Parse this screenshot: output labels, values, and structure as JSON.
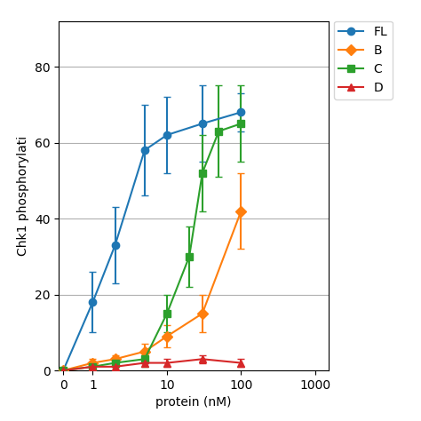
{
  "chart_data": {
    "type": "line",
    "x_label": "protein (nM)",
    "y_label": "Chk1 phosphorylati",
    "log": "x",
    "xlim": [
      0.35,
      1500
    ],
    "xticks": [
      {
        "value": 0.4,
        "label": "0"
      },
      1,
      10,
      100,
      1000
    ],
    "ylim": [
      0,
      92
    ],
    "yticks": [
      0,
      20,
      40,
      60,
      80
    ],
    "grid": "y",
    "legend": "upper left",
    "series": [
      {
        "name": "FL",
        "marker": "circle",
        "line_style": "solid",
        "x": [
          0.4,
          1.0,
          2.0,
          5.0,
          10.0,
          30.0,
          100.0
        ],
        "values": [
          0,
          18,
          33,
          58,
          62,
          65,
          68
        ],
        "yerr": [
          0,
          8,
          10,
          12,
          10,
          10,
          5
        ]
      },
      {
        "name": "B",
        "marker": "diamond",
        "line_style": "solid",
        "x": [
          0.4,
          1.0,
          2.0,
          5.0,
          10.0,
          30.0,
          100.0
        ],
        "values": [
          0,
          2,
          3,
          5,
          9,
          15,
          42
        ],
        "yerr": [
          0,
          1,
          1,
          2,
          3,
          5,
          10
        ]
      },
      {
        "name": "C",
        "marker": "square",
        "line_style": "solid",
        "x": [
          0.4,
          1.0,
          2.0,
          5.0,
          10.0,
          20.0,
          30.0,
          50.0,
          100.0
        ],
        "values": [
          0,
          1,
          2,
          3,
          15,
          30,
          52,
          63,
          65
        ],
        "yerr": [
          0,
          1,
          1,
          2,
          5,
          8,
          10,
          12,
          10
        ]
      },
      {
        "name": "D",
        "marker": "triangle",
        "line_style": "solid",
        "x": [
          0.4,
          1.0,
          2.0,
          5.0,
          10.0,
          30.0,
          100.0
        ],
        "values": [
          0,
          1,
          1,
          2,
          2,
          3,
          2
        ],
        "yerr": [
          0,
          0,
          0,
          0,
          1,
          1,
          1
        ]
      }
    ]
  }
}
